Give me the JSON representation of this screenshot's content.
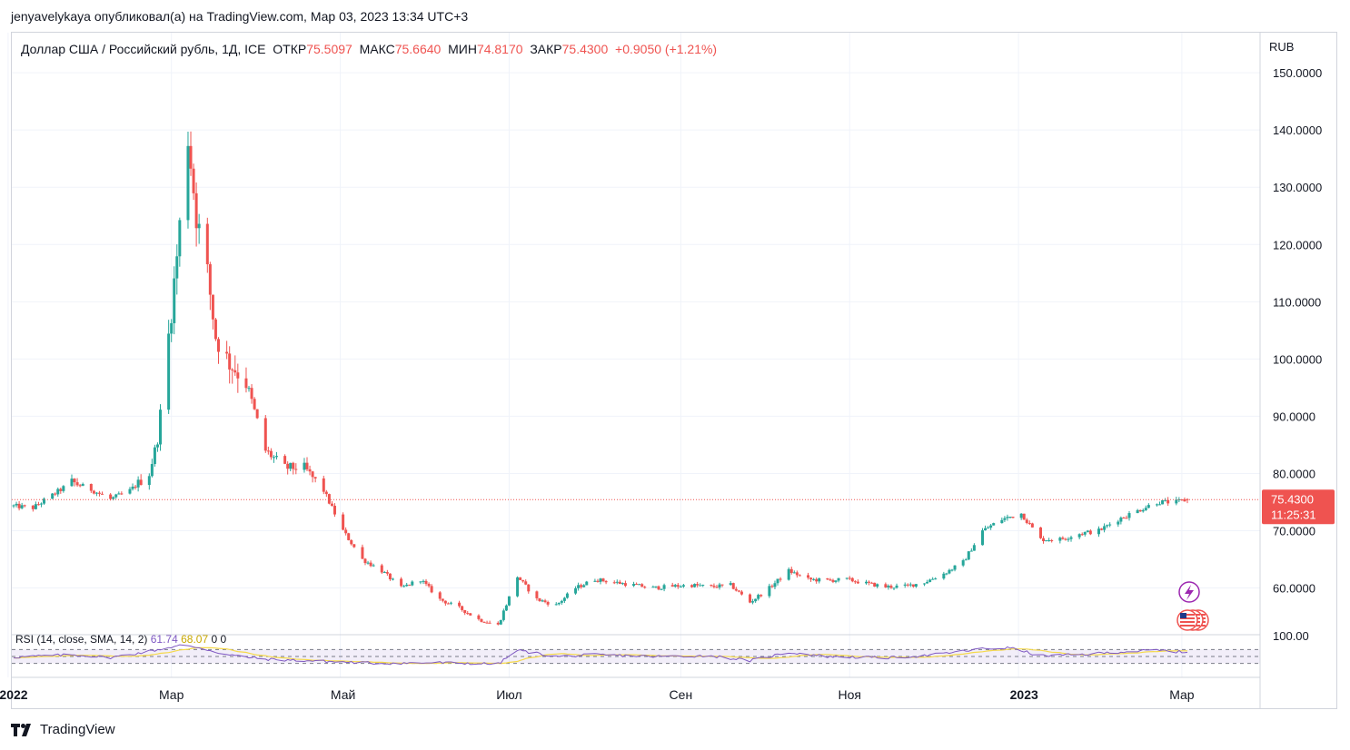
{
  "header": {
    "publish_line": "jenyavelykaya опубликовал(а) на TradingView.com, Мар 03, 2023 13:34 UTC+3"
  },
  "legend": {
    "symbol": "Доллар США / Российский рубль, 1Д, ICE",
    "open_label": "ОТКР",
    "open_value": "75.5097",
    "high_label": "МАКС",
    "high_value": "75.6640",
    "low_label": "МИН",
    "low_value": "74.8170",
    "close_label": "ЗАКР",
    "close_value": "75.4300",
    "change": "+0.9050 (+1.21%)"
  },
  "price_scale": {
    "currency": "RUB",
    "last_price": "75.4300",
    "countdown": "11:25:31"
  },
  "rsi": {
    "label": "RSI (14, close, SMA, 14, 2)",
    "value": "61.74",
    "sma_value": "68.07",
    "extra": "0  0",
    "axis_label": "100.00"
  },
  "brand": {
    "name": "TradingView"
  },
  "colors": {
    "up": "#26a69a",
    "down": "#ef5350",
    "rsi_line": "#7e57c2",
    "rsi_sma": "#f5d94a"
  },
  "chart_data": {
    "type": "candlestick",
    "y_unit": "RUB",
    "ylim": [
      52,
      157
    ],
    "y_ticks": [
      60,
      70,
      80,
      90,
      100,
      110,
      120,
      130,
      140,
      150
    ],
    "x_ticks": [
      "2022",
      "Мар",
      "Май",
      "Июл",
      "Сен",
      "Ноя",
      "2023",
      "Мар"
    ],
    "rsi_ylim": [
      0,
      100
    ],
    "rsi_bands": [
      30,
      50,
      70
    ],
    "close_path": [
      {
        "t": "2022-01-03",
        "v": 74.3
      },
      {
        "t": "2022-01-10",
        "v": 74.0
      },
      {
        "t": "2022-01-17",
        "v": 76.2
      },
      {
        "t": "2022-01-24",
        "v": 78.5
      },
      {
        "t": "2022-01-31",
        "v": 77.2
      },
      {
        "t": "2022-02-07",
        "v": 75.5
      },
      {
        "t": "2022-02-14",
        "v": 77.0
      },
      {
        "t": "2022-02-21",
        "v": 80.0
      },
      {
        "t": "2022-02-24",
        "v": 86.0
      },
      {
        "t": "2022-02-28",
        "v": 104.0
      },
      {
        "t": "2022-03-03",
        "v": 118.0
      },
      {
        "t": "2022-03-07",
        "v": 139.0
      },
      {
        "t": "2022-03-10",
        "v": 125.0
      },
      {
        "t": "2022-03-14",
        "v": 115.0
      },
      {
        "t": "2022-03-17",
        "v": 104.0
      },
      {
        "t": "2022-03-21",
        "v": 100.0
      },
      {
        "t": "2022-03-28",
        "v": 96.0
      },
      {
        "t": "2022-04-04",
        "v": 84.0
      },
      {
        "t": "2022-04-11",
        "v": 81.0
      },
      {
        "t": "2022-04-18",
        "v": 81.0
      },
      {
        "t": "2022-04-25",
        "v": 77.0
      },
      {
        "t": "2022-05-02",
        "v": 70.0
      },
      {
        "t": "2022-05-09",
        "v": 65.0
      },
      {
        "t": "2022-05-16",
        "v": 63.0
      },
      {
        "t": "2022-05-23",
        "v": 60.0
      },
      {
        "t": "2022-05-30",
        "v": 61.5
      },
      {
        "t": "2022-06-06",
        "v": 58.0
      },
      {
        "t": "2022-06-13",
        "v": 56.5
      },
      {
        "t": "2022-06-20",
        "v": 54.5
      },
      {
        "t": "2022-06-27",
        "v": 53.5
      },
      {
        "t": "2022-07-04",
        "v": 62.0
      },
      {
        "t": "2022-07-11",
        "v": 58.0
      },
      {
        "t": "2022-07-18",
        "v": 57.0
      },
      {
        "t": "2022-07-25",
        "v": 60.0
      },
      {
        "t": "2022-08-01",
        "v": 61.5
      },
      {
        "t": "2022-08-08",
        "v": 61.0
      },
      {
        "t": "2022-08-15",
        "v": 60.5
      },
      {
        "t": "2022-08-22",
        "v": 60.0
      },
      {
        "t": "2022-08-29",
        "v": 60.3
      },
      {
        "t": "2022-09-05",
        "v": 60.5
      },
      {
        "t": "2022-09-12",
        "v": 60.2
      },
      {
        "t": "2022-09-19",
        "v": 60.5
      },
      {
        "t": "2022-09-26",
        "v": 57.5
      },
      {
        "t": "2022-10-03",
        "v": 60.0
      },
      {
        "t": "2022-10-10",
        "v": 63.0
      },
      {
        "t": "2022-10-17",
        "v": 61.5
      },
      {
        "t": "2022-10-24",
        "v": 61.3
      },
      {
        "t": "2022-10-31",
        "v": 61.5
      },
      {
        "t": "2022-11-07",
        "v": 60.8
      },
      {
        "t": "2022-11-14",
        "v": 60.2
      },
      {
        "t": "2022-11-21",
        "v": 60.3
      },
      {
        "t": "2022-11-28",
        "v": 61.0
      },
      {
        "t": "2022-12-05",
        "v": 62.5
      },
      {
        "t": "2022-12-12",
        "v": 64.5
      },
      {
        "t": "2022-12-19",
        "v": 70.0
      },
      {
        "t": "2022-12-26",
        "v": 72.0
      },
      {
        "t": "2023-01-02",
        "v": 73.0
      },
      {
        "t": "2023-01-09",
        "v": 68.5
      },
      {
        "t": "2023-01-16",
        "v": 68.5
      },
      {
        "t": "2023-01-23",
        "v": 69.5
      },
      {
        "t": "2023-01-30",
        "v": 70.0
      },
      {
        "t": "2023-02-06",
        "v": 72.0
      },
      {
        "t": "2023-02-13",
        "v": 73.5
      },
      {
        "t": "2023-02-20",
        "v": 75.0
      },
      {
        "t": "2023-02-27",
        "v": 75.0
      },
      {
        "t": "2023-03-03",
        "v": 75.43
      }
    ],
    "rsi_path": [
      {
        "t": "2022-01-03",
        "v": 48
      },
      {
        "t": "2022-01-24",
        "v": 55
      },
      {
        "t": "2022-02-07",
        "v": 47
      },
      {
        "t": "2022-02-21",
        "v": 65
      },
      {
        "t": "2022-03-04",
        "v": 82
      },
      {
        "t": "2022-03-11",
        "v": 76
      },
      {
        "t": "2022-03-21",
        "v": 55
      },
      {
        "t": "2022-04-04",
        "v": 42
      },
      {
        "t": "2022-04-25",
        "v": 36
      },
      {
        "t": "2022-05-16",
        "v": 30
      },
      {
        "t": "2022-06-06",
        "v": 32
      },
      {
        "t": "2022-06-27",
        "v": 28
      },
      {
        "t": "2022-07-04",
        "v": 68
      },
      {
        "t": "2022-07-18",
        "v": 50
      },
      {
        "t": "2022-08-01",
        "v": 55
      },
      {
        "t": "2022-08-22",
        "v": 50
      },
      {
        "t": "2022-09-12",
        "v": 52
      },
      {
        "t": "2022-09-26",
        "v": 38
      },
      {
        "t": "2022-10-10",
        "v": 62
      },
      {
        "t": "2022-10-24",
        "v": 50
      },
      {
        "t": "2022-11-14",
        "v": 46
      },
      {
        "t": "2022-11-28",
        "v": 52
      },
      {
        "t": "2022-12-19",
        "v": 72
      },
      {
        "t": "2022-12-29",
        "v": 75
      },
      {
        "t": "2023-01-09",
        "v": 52
      },
      {
        "t": "2023-01-23",
        "v": 55
      },
      {
        "t": "2023-02-06",
        "v": 63
      },
      {
        "t": "2023-02-20",
        "v": 68
      },
      {
        "t": "2023-03-03",
        "v": 61.74
      }
    ]
  }
}
